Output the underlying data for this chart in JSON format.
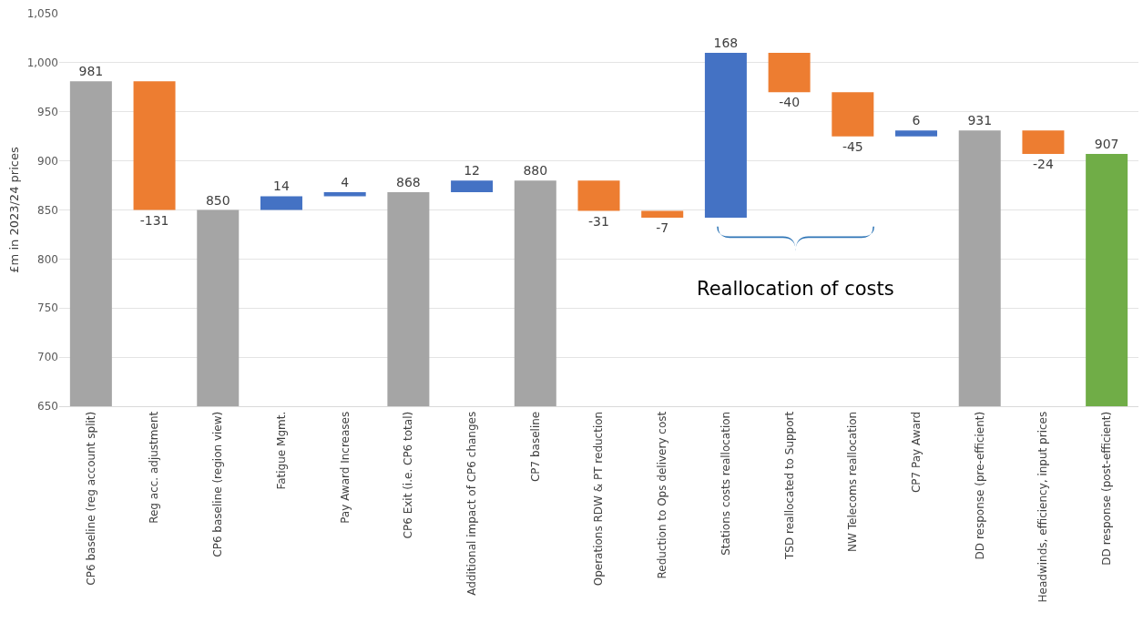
{
  "chart_data": {
    "type": "bar",
    "ylabel": "£m in 2023/24 prices",
    "categories": [
      "CP6 baseline (reg account split)",
      "Reg acc. adjustment",
      "CP6 baseline (region view)",
      "Fatigue Mgmt.",
      "Pay Award Increases",
      "CP6 Exit (i.e. CP6 total)",
      "Additional impact of CP6 changes",
      "CP7 baseline",
      "Operations RDW & PT reduction",
      "Reduction to Ops delivery cost",
      "Stations costs reallocation",
      "TSD reallocated to Support",
      "NW Telecoms reallocation",
      "CP7 Pay Award",
      "DD response (pre-efficient)",
      "Headwinds, efficiency, input prices",
      "DD response (post-efficient)"
    ],
    "values": [
      981,
      -131,
      850,
      14,
      4,
      868,
      12,
      880,
      -31,
      -7,
      168,
      -40,
      -45,
      6,
      931,
      -24,
      907
    ],
    "base": [
      null,
      981,
      null,
      850,
      864,
      null,
      868,
      null,
      880,
      849,
      842,
      1010,
      970,
      925,
      null,
      931,
      null
    ],
    "colors": [
      "#a5a5a5",
      "#ed7d31",
      "#a5a5a5",
      "#4472c4",
      "#4472c4",
      "#a5a5a5",
      "#4472c4",
      "#a5a5a5",
      "#ed7d31",
      "#ed7d31",
      "#4472c4",
      "#ed7d31",
      "#ed7d31",
      "#4472c4",
      "#a5a5a5",
      "#ed7d31",
      "#70ad47"
    ],
    "ylim": [
      650,
      1050
    ],
    "yticks": [
      650,
      700,
      750,
      800,
      850,
      900,
      950,
      {
        "value": 1000,
        "label": "1,000"
      },
      {
        "value": 1050,
        "label": "1,050"
      }
    ],
    "grid": true,
    "data_labels": true,
    "annotations": [
      "Reallocation of costs"
    ]
  }
}
